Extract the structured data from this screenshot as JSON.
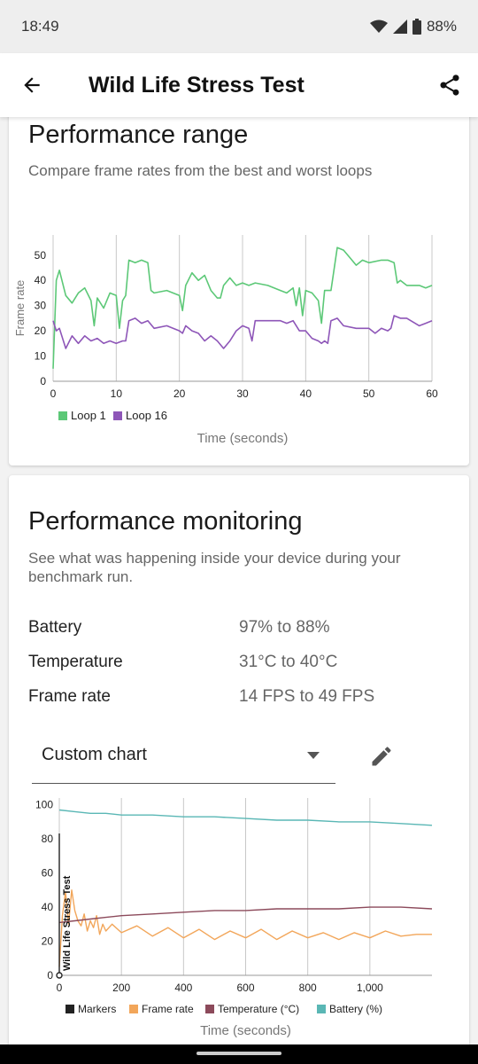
{
  "status_bar": {
    "time": "18:49",
    "battery": "88%"
  },
  "app_bar": {
    "title": "Wild Life Stress Test",
    "back_icon": "arrow-back-icon",
    "share_icon": "share-icon"
  },
  "range_card": {
    "title": "Performance range",
    "subtitle": "Compare frame rates from the best and worst loops",
    "chart_data": {
      "type": "line",
      "ylabel": "Frame rate",
      "xlabel": "Time (seconds)",
      "xlim": [
        0,
        60
      ],
      "ylim": [
        0,
        58
      ],
      "xticks": [
        "0",
        "10",
        "20",
        "30",
        "40",
        "50",
        "60"
      ],
      "yticks": [
        "0",
        "10",
        "20",
        "30",
        "40",
        "50"
      ],
      "legend_position": "bottom-left",
      "series": [
        {
          "name": "Loop 1",
          "color": "#5cc877",
          "x": [
            0,
            0.5,
            1,
            1.5,
            2,
            3,
            4,
            5,
            6,
            6.5,
            7,
            8,
            9,
            10,
            10.5,
            11,
            11.5,
            12,
            13,
            14,
            15,
            15.5,
            16,
            18,
            20,
            20.5,
            21,
            22,
            23,
            24,
            25,
            26,
            26.5,
            27,
            28,
            29,
            30,
            31,
            32,
            34,
            36,
            37,
            38,
            38.5,
            39,
            39.5,
            40,
            41,
            42,
            42.5,
            43,
            43.5,
            44,
            45,
            46,
            47,
            48,
            49,
            50,
            52,
            53,
            54,
            54.5,
            55,
            56,
            58,
            59,
            60
          ],
          "y": [
            5,
            40,
            44,
            39,
            34,
            31,
            35,
            37,
            32,
            22,
            33,
            29,
            35,
            34,
            21,
            32,
            34,
            48,
            47,
            48,
            47,
            36,
            35,
            36,
            34,
            28,
            38,
            43,
            40,
            42,
            36,
            33,
            33,
            38,
            41,
            38,
            39,
            38,
            39,
            38,
            36,
            35,
            37,
            30,
            37,
            26,
            36,
            35,
            32,
            23,
            36,
            36,
            36,
            53,
            52,
            49,
            46,
            48,
            47,
            48,
            48,
            47,
            39,
            40,
            38,
            38,
            37,
            38
          ]
        },
        {
          "name": "Loop 16",
          "color": "#8e56b8",
          "x": [
            0,
            0.5,
            1,
            1.5,
            2,
            3,
            4,
            5,
            6,
            7,
            8,
            9,
            10,
            11,
            11.5,
            12,
            13,
            14,
            15,
            16,
            18,
            19,
            20,
            20.5,
            21,
            22,
            23,
            24,
            25,
            26,
            27,
            28,
            29,
            30,
            31,
            31.5,
            32,
            34,
            36,
            37,
            38,
            39,
            40,
            41,
            42,
            42.5,
            43,
            43.5,
            44,
            45,
            46,
            48,
            50,
            51,
            52,
            53,
            53.5,
            54,
            55,
            56,
            58,
            59,
            60
          ],
          "y": [
            24,
            20,
            21,
            17,
            13,
            18,
            15,
            18,
            16,
            17,
            15,
            16,
            15,
            16,
            16,
            24,
            25,
            23,
            24,
            21,
            22,
            21,
            20,
            19,
            22,
            20,
            19,
            16,
            18,
            16,
            13,
            16,
            20,
            22,
            21,
            16,
            24,
            24,
            24,
            23,
            24,
            20,
            20,
            17,
            16,
            15,
            16,
            15,
            24,
            25,
            22,
            21,
            21,
            19,
            21,
            20,
            21,
            26,
            25,
            25,
            22,
            23,
            24
          ]
        }
      ]
    }
  },
  "monitor_card": {
    "title": "Performance monitoring",
    "subtitle": "See what was happening inside your device during your benchmark run.",
    "rows": [
      {
        "label": "Battery",
        "value": "97% to 88%"
      },
      {
        "label": "Temperature",
        "value": "31°C to 40°C"
      },
      {
        "label": "Frame rate",
        "value": "14 FPS to 49 FPS"
      }
    ],
    "dropdown": {
      "label": "Custom chart",
      "arrow_icon": "dropdown-arrow-icon"
    },
    "edit_icon": "pencil-edit-icon",
    "chart_data": {
      "type": "line",
      "xlabel": "Time (seconds)",
      "xlim": [
        0,
        1200
      ],
      "ylim": [
        0,
        104
      ],
      "xticks": [
        "0",
        "200",
        "400",
        "600",
        "800",
        "1,000"
      ],
      "yticks": [
        "0",
        "20",
        "40",
        "60",
        "80",
        "100"
      ],
      "marker_label": "Wild Life Stress Test",
      "legend_position": "bottom",
      "series": [
        {
          "name": "Markers",
          "color": "#222222",
          "x": [],
          "y": []
        },
        {
          "name": "Frame rate",
          "color": "#f2a65a",
          "x": [
            0,
            10,
            20,
            30,
            40,
            50,
            60,
            70,
            80,
            90,
            100,
            110,
            120,
            130,
            140,
            150,
            170,
            200,
            250,
            300,
            350,
            400,
            450,
            500,
            550,
            600,
            650,
            700,
            750,
            800,
            850,
            900,
            950,
            1000,
            1050,
            1100,
            1150,
            1200
          ],
          "y": [
            5,
            35,
            49,
            30,
            50,
            38,
            32,
            29,
            36,
            26,
            32,
            28,
            35,
            24,
            30,
            26,
            30,
            25,
            29,
            23,
            28,
            22,
            27,
            21,
            26,
            22,
            27,
            21,
            26,
            22,
            25,
            21,
            25,
            22,
            26,
            23,
            24,
            24
          ]
        },
        {
          "name": "Temperature (°C)",
          "color": "#8c4a5b",
          "x": [
            0,
            50,
            100,
            150,
            200,
            300,
            400,
            500,
            600,
            700,
            800,
            900,
            1000,
            1100,
            1200
          ],
          "y": [
            31,
            32,
            33,
            34,
            35,
            36,
            37,
            38,
            38,
            39,
            39,
            39,
            40,
            40,
            39
          ]
        },
        {
          "name": "Battery (%)",
          "color": "#5ab7b5",
          "x": [
            0,
            50,
            100,
            150,
            200,
            300,
            400,
            500,
            600,
            700,
            800,
            900,
            1000,
            1100,
            1200
          ],
          "y": [
            97,
            96,
            95,
            95,
            94,
            94,
            93,
            93,
            92,
            91,
            91,
            90,
            90,
            89,
            88
          ]
        }
      ]
    }
  }
}
